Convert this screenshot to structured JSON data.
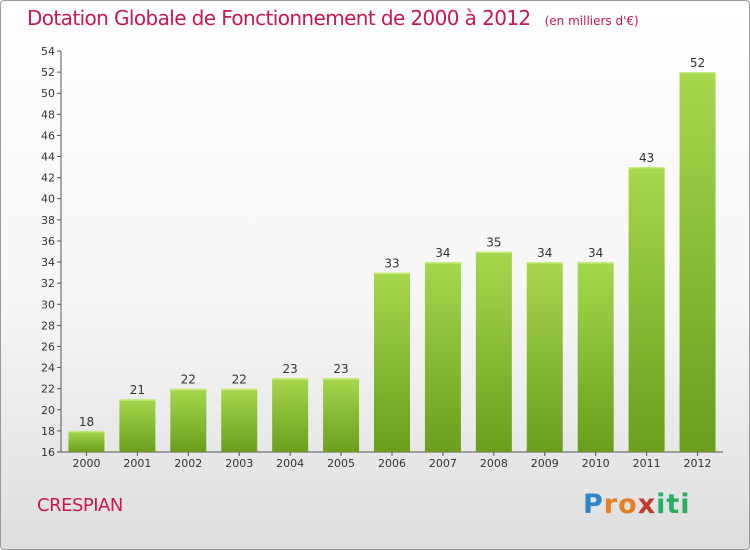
{
  "header": {
    "title": "Dotation Globale de Fonctionnement de 2000 à 2012",
    "unit": "(en milliers d'€)"
  },
  "footer": {
    "commune": "CRESPIAN",
    "logo_letters": [
      "P",
      "r",
      "o",
      "x",
      "i",
      "t",
      "i"
    ],
    "logo_colors": [
      "#2e86c8",
      "#e67e22",
      "#e67e22",
      "#c0392b",
      "#27ae60",
      "#27ae60",
      "#27ae60"
    ]
  },
  "colors": {
    "title": "#c8194f",
    "bar_top": "#a6d84e",
    "bar_bottom": "#6a9e1c"
  },
  "chart_data": {
    "type": "bar",
    "title": "Dotation Globale de Fonctionnement de 2000 à 2012",
    "subtitle": "(en milliers d'€)",
    "xlabel": "",
    "ylabel": "",
    "categories": [
      "2000",
      "2001",
      "2002",
      "2003",
      "2004",
      "2005",
      "2006",
      "2007",
      "2008",
      "2009",
      "2010",
      "2011",
      "2012"
    ],
    "values": [
      18,
      21,
      22,
      22,
      23,
      23,
      33,
      34,
      35,
      34,
      34,
      43,
      52
    ],
    "ylim": [
      16,
      54
    ],
    "ytick_step": 2,
    "grid": false,
    "legend": "none"
  }
}
